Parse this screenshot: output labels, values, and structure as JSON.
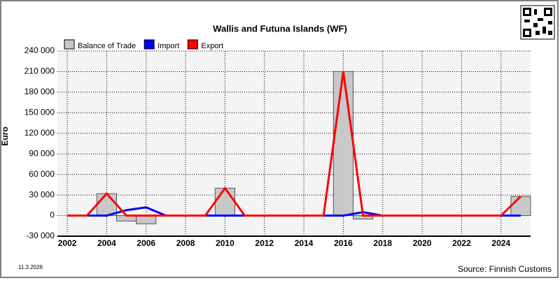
{
  "chart_data": {
    "type": "combo",
    "title": "Wallis and Futuna Islands (WF)",
    "y_label": "Euro",
    "date": "11.3.2026",
    "source": "Source: Finnish Customs",
    "x": [
      2002,
      2003,
      2004,
      2005,
      2006,
      2007,
      2008,
      2009,
      2010,
      2011,
      2012,
      2013,
      2014,
      2015,
      2016,
      2017,
      2018,
      2019,
      2020,
      2021,
      2022,
      2023,
      2024,
      2025
    ],
    "xlim": [
      2001.5,
      2025.5
    ],
    "xticks": [
      2002,
      2004,
      2006,
      2008,
      2010,
      2012,
      2014,
      2016,
      2018,
      2020,
      2022,
      2024
    ],
    "ylim": [
      -30000,
      240000
    ],
    "yticks": [
      {
        "value": -30000,
        "label": "-30 000"
      },
      0,
      {
        "value": 30000,
        "label": "30 000"
      },
      {
        "value": 60000,
        "label": "60 000"
      },
      {
        "value": 90000,
        "label": "90 000"
      },
      {
        "value": 120000,
        "label": "120 000"
      },
      {
        "value": 150000,
        "label": "150 000"
      },
      {
        "value": 180000,
        "label": "180 000"
      },
      {
        "value": 210000,
        "label": "210 000"
      },
      {
        "value": 240000,
        "label": "240 000"
      }
    ],
    "grid": true,
    "series": [
      {
        "name": "Balance of Trade",
        "type": "bar",
        "color": "#c8c8c8",
        "values": [
          0,
          0,
          32000,
          -8000,
          -12000,
          0,
          0,
          0,
          40000,
          0,
          0,
          0,
          0,
          0,
          210000,
          -5000,
          0,
          0,
          0,
          1000,
          0,
          0,
          0,
          28000
        ]
      },
      {
        "name": "Import",
        "type": "line",
        "color": "#0000ff",
        "values": [
          0,
          0,
          0,
          8000,
          12000,
          0,
          0,
          0,
          0,
          0,
          0,
          0,
          0,
          0,
          0,
          5000,
          0,
          0,
          0,
          0,
          0,
          0,
          0,
          0
        ]
      },
      {
        "name": "Export",
        "type": "line",
        "color": "#ff0000",
        "values": [
          0,
          0,
          32000,
          0,
          0,
          0,
          0,
          0,
          40000,
          0,
          0,
          0,
          0,
          0,
          210000,
          0,
          0,
          0,
          0,
          0,
          0,
          0,
          0,
          28000
        ]
      }
    ]
  }
}
